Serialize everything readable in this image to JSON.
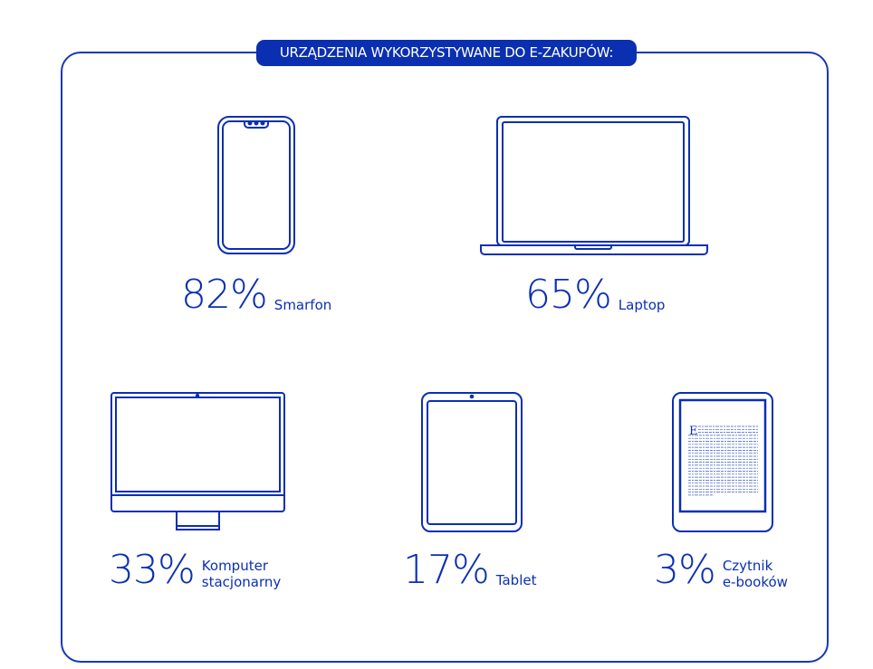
{
  "title": "URZĄDZENIA WYKORZYSTYWANE DO E-ZAKUPÓW:",
  "accent_color": "#0a2fb0",
  "devices": [
    {
      "icon": "smartphone-icon",
      "percent": "82%",
      "label": "Smarfon"
    },
    {
      "icon": "laptop-icon",
      "percent": "65%",
      "label": "Laptop"
    },
    {
      "icon": "desktop-computer-icon",
      "percent": "33%",
      "label_line1": "Komputer",
      "label_line2": "stacjonarny"
    },
    {
      "icon": "tablet-icon",
      "percent": "17%",
      "label": "Tablet"
    },
    {
      "icon": "ebook-reader-icon",
      "percent": "3%",
      "label_line1": "Czytnik",
      "label_line2": "e-booków"
    }
  ]
}
